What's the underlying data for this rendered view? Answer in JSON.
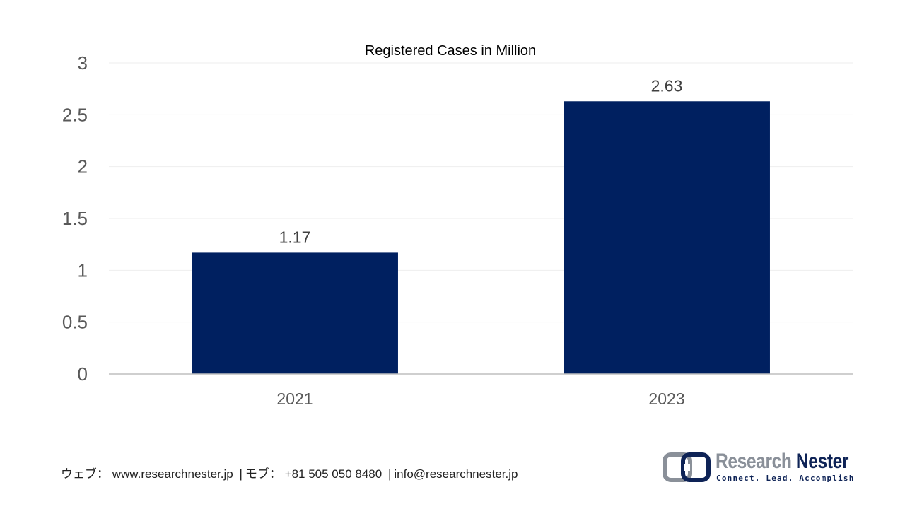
{
  "chart_data": {
    "type": "bar",
    "title": "Registered Cases in Million",
    "categories": [
      "2021",
      "2023"
    ],
    "values": [
      1.17,
      2.63
    ],
    "data_labels": [
      "1.17",
      "2.63"
    ],
    "y_ticks": [
      "0",
      "0.5",
      "1",
      "1.5",
      "2",
      "2.5",
      "3"
    ],
    "ylim": [
      0,
      3
    ],
    "xlabel": "",
    "ylabel": "",
    "grid": true,
    "legend": "none",
    "bar_color": "#002060",
    "gridline_color": "#eeeeee",
    "axis_color": "#bfbfbf"
  },
  "footer": {
    "web_label": "ウェブ：",
    "web_url": "www.researchnester.jp",
    "separator": "|",
    "phone_label": "モブ：",
    "phone": "+81 505 050 8480",
    "email": "info@researchnester.jp"
  },
  "logo": {
    "name_part1": "Research",
    "name_part2": "Nester",
    "tagline": "Connect. Lead. Accomplish",
    "mark_icon": "research-nester-logo-mark-icon",
    "mark_colors": [
      "#8a9099",
      "#0e2356"
    ]
  }
}
